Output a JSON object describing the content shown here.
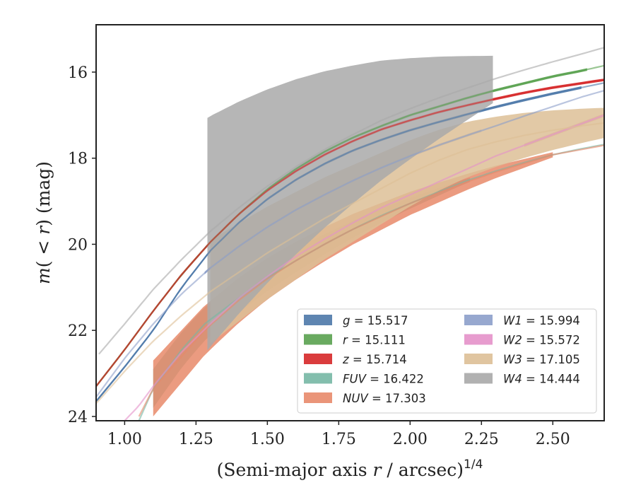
{
  "chart_data": {
    "type": "line",
    "xlabel": "(Semi-major axis r / arcsec)^1/4",
    "ylabel": "m(< r) (mag)",
    "xlim": [
      0.9,
      2.68
    ],
    "ylim": [
      24.1,
      14.9
    ],
    "y_inverted": true,
    "grid": false,
    "legend_position": "lower-right",
    "x_ticks": [
      "1.00",
      "1.25",
      "1.50",
      "1.75",
      "2.00",
      "2.25",
      "2.50"
    ],
    "y_ticks": [
      "16",
      "18",
      "20",
      "22",
      "24"
    ],
    "series": [
      {
        "name": "g = 15.517",
        "color": "#4c78a8",
        "x": [
          0.9,
          1.0,
          1.1,
          1.2,
          1.3,
          1.4,
          1.5,
          1.6,
          1.7,
          1.8,
          1.9,
          2.0,
          2.1,
          2.2,
          2.3,
          2.4,
          2.5,
          2.6,
          2.68
        ],
        "y": [
          23.65,
          22.85,
          22.0,
          21.0,
          20.15,
          19.5,
          18.95,
          18.5,
          18.13,
          17.82,
          17.57,
          17.35,
          17.16,
          16.98,
          16.81,
          16.65,
          16.5,
          16.36,
          16.25
        ],
        "fit": [
          0.9,
          2.6
        ],
        "band": [
          0.03,
          0.03
        ]
      },
      {
        "name": "r = 15.111",
        "color": "#59a14f",
        "x": [
          0.9,
          1.0,
          1.1,
          1.2,
          1.3,
          1.4,
          1.5,
          1.6,
          1.7,
          1.8,
          1.9,
          2.0,
          2.1,
          2.2,
          2.3,
          2.4,
          2.5,
          2.6,
          2.68
        ],
        "y": [
          23.3,
          22.45,
          21.55,
          20.7,
          19.95,
          19.3,
          18.72,
          18.25,
          17.85,
          17.52,
          17.25,
          17.0,
          16.8,
          16.6,
          16.42,
          16.26,
          16.1,
          15.97,
          15.85
        ],
        "fit": [
          0.9,
          2.62
        ],
        "band": [
          0.03,
          0.03
        ]
      },
      {
        "name": "z = 15.714",
        "color": "#d62728",
        "x": [
          0.9,
          1.0,
          1.1,
          1.2,
          1.3,
          1.4,
          1.5,
          1.6,
          1.7,
          1.8,
          1.9,
          2.0,
          2.1,
          2.2,
          2.3,
          2.4,
          2.5,
          2.6,
          2.68
        ],
        "y": [
          23.3,
          22.45,
          21.55,
          20.7,
          19.95,
          19.3,
          18.75,
          18.3,
          17.92,
          17.6,
          17.33,
          17.12,
          16.93,
          16.77,
          16.62,
          16.48,
          16.36,
          16.26,
          16.18
        ],
        "fit": [
          0.9,
          2.68
        ],
        "band": [
          0.03,
          0.03
        ]
      },
      {
        "name": "FUV = 16.422",
        "color": "#76b7a4",
        "x": [
          1.05,
          1.1,
          1.2,
          1.28,
          1.4,
          1.5,
          1.6,
          1.7,
          1.8,
          1.9,
          2.0,
          2.1,
          2.2,
          2.3,
          2.4,
          2.5,
          2.6,
          2.68
        ],
        "y": [
          24.1,
          23.35,
          22.45,
          21.85,
          21.25,
          20.78,
          20.38,
          20.0,
          19.65,
          19.33,
          19.05,
          18.78,
          18.52,
          18.3,
          18.1,
          17.92,
          17.78,
          17.68
        ],
        "fit": [
          1.1,
          2.21
        ],
        "band": [
          0.45,
          0.05
        ]
      },
      {
        "name": "NUV = 17.303",
        "color": "#e8896a",
        "x": [
          1.05,
          1.1,
          1.2,
          1.28,
          1.4,
          1.5,
          1.6,
          1.7,
          1.8,
          1.9,
          2.0,
          2.1,
          2.2,
          2.3,
          2.4,
          2.5,
          2.6,
          2.68
        ],
        "y": [
          24.0,
          23.35,
          22.6,
          22.0,
          21.3,
          20.8,
          20.38,
          20.0,
          19.65,
          19.35,
          19.05,
          18.8,
          18.55,
          18.32,
          18.12,
          17.92,
          17.8,
          17.7
        ],
        "fit": [
          1.1,
          2.5
        ],
        "band": [
          0.65,
          0.06
        ]
      },
      {
        "name": "W1 = 15.994",
        "color": "#8c9fca",
        "x": [
          0.9,
          1.0,
          1.1,
          1.2,
          1.3,
          1.4,
          1.5,
          1.6,
          1.7,
          1.8,
          1.9,
          2.0,
          2.1,
          2.2,
          2.3,
          2.4,
          2.5,
          2.6,
          2.68
        ],
        "y": [
          23.55,
          22.65,
          21.85,
          21.15,
          20.55,
          20.05,
          19.6,
          19.2,
          18.85,
          18.52,
          18.22,
          17.95,
          17.7,
          17.47,
          17.25,
          17.02,
          16.8,
          16.58,
          16.43
        ],
        "fit": [
          1.28,
          2.25
        ],
        "band": [
          0.03,
          0.03
        ]
      },
      {
        "name": "W2 = 15.572",
        "color": "#e491c9",
        "x": [
          1.0,
          1.05,
          1.1,
          1.2,
          1.3,
          1.4,
          1.5,
          1.6,
          1.7,
          1.8,
          1.9,
          2.0,
          2.1,
          2.2,
          2.3,
          2.4,
          2.5,
          2.6,
          2.68
        ],
        "y": [
          24.1,
          23.75,
          23.3,
          22.5,
          21.85,
          21.25,
          20.75,
          20.28,
          19.88,
          19.5,
          19.15,
          18.85,
          18.55,
          18.25,
          17.95,
          17.7,
          17.45,
          17.2,
          17.0
        ],
        "fit": [
          2.4,
          2.68
        ],
        "band": [
          0.04,
          0.04
        ]
      },
      {
        "name": "W3 = 17.105",
        "color": "#ddbf96",
        "x": [
          0.9,
          1.0,
          1.1,
          1.2,
          1.3,
          1.4,
          1.5,
          1.6,
          1.7,
          1.8,
          1.9,
          2.0,
          2.1,
          2.2,
          2.3,
          2.4,
          2.5,
          2.6,
          2.68
        ],
        "y": [
          23.7,
          22.95,
          22.25,
          21.65,
          21.1,
          20.65,
          20.2,
          19.8,
          19.4,
          19.05,
          18.7,
          18.35,
          18.05,
          17.8,
          17.62,
          17.47,
          17.35,
          17.25,
          17.18
        ],
        "fit": [
          1.3,
          2.68
        ],
        "band": [
          1.2,
          0.35
        ]
      },
      {
        "name": "W4 = 14.444",
        "color": "#a9a9a9",
        "x": [
          0.91,
          1.0,
          1.1,
          1.2,
          1.3,
          1.4,
          1.5,
          1.6,
          1.7,
          1.8,
          1.9,
          2.0,
          2.1,
          2.2,
          2.3,
          2.4,
          2.5,
          2.6,
          2.68
        ],
        "y": [
          22.55,
          21.85,
          21.05,
          20.35,
          19.7,
          19.15,
          18.65,
          18.2,
          17.8,
          17.45,
          17.12,
          16.85,
          16.6,
          16.37,
          16.15,
          15.95,
          15.76,
          15.58,
          15.43
        ],
        "fit": [
          1.29,
          2.29
        ],
        "band": [
          2.7,
          0.55
        ]
      }
    ]
  }
}
